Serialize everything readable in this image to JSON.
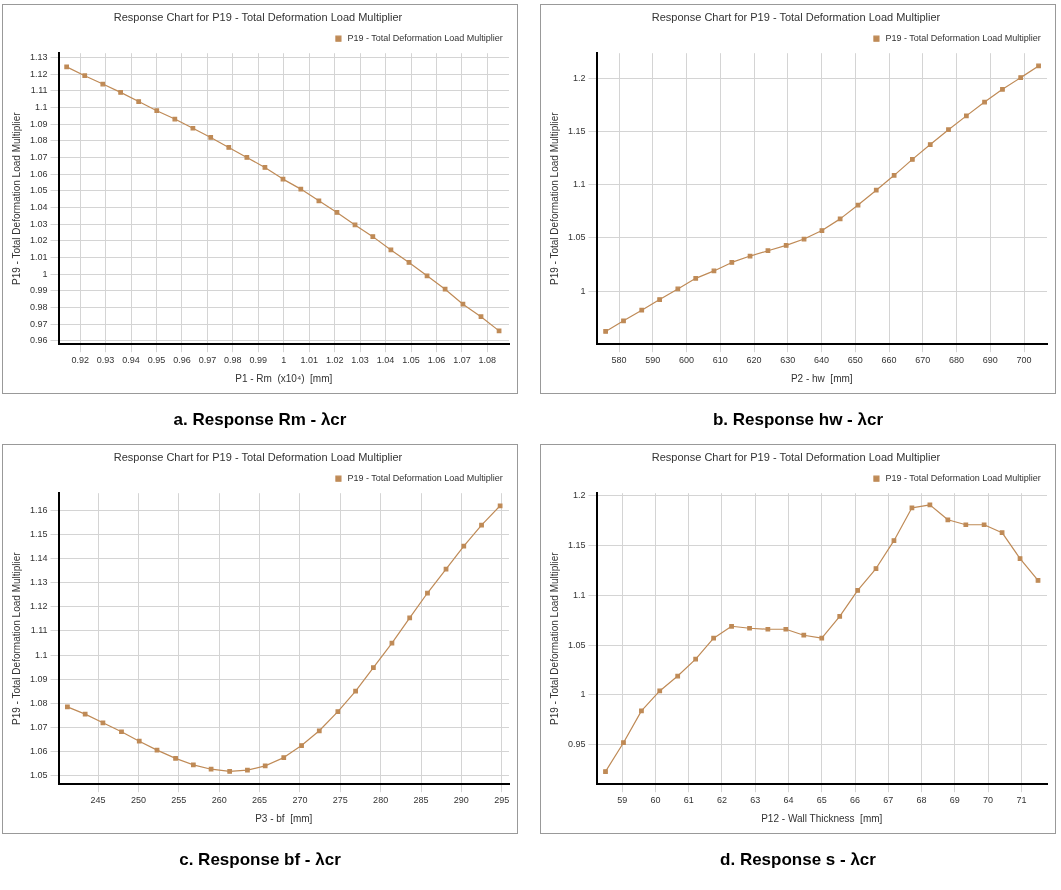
{
  "chart_data": [
    {
      "type": "line",
      "title": "Response Chart for P19 - Total Deformation Load Multiplier",
      "xlabel": "P1 - Rm  (x10⁴)  [mm]",
      "ylabel": "P19 - Total Deformation Load Multiplier",
      "x": [
        0.9147,
        0.9218,
        0.9289,
        0.9359,
        0.943,
        0.9501,
        0.9572,
        0.9643,
        0.9713,
        0.9784,
        0.9855,
        0.9926,
        0.9997,
        1.0067,
        1.0138,
        1.0209,
        1.028,
        1.035,
        1.0421,
        1.0492,
        1.0563,
        1.0634,
        1.0704,
        1.0775,
        1.0846
      ],
      "series": [
        {
          "name": "P19 - Total Deformation Load Multiplier",
          "color": "#bf8a56",
          "values": [
            1.1243,
            1.119,
            1.114,
            1.109,
            1.1035,
            1.098,
            1.093,
            1.0875,
            1.082,
            1.076,
            1.07,
            1.064,
            1.057,
            1.051,
            1.044,
            1.037,
            1.0295,
            1.0225,
            1.0145,
            1.007,
            0.999,
            0.991,
            0.982,
            0.9745,
            0.966
          ]
        }
      ],
      "xlim": [
        0.9115,
        1.0885
      ],
      "ylim": [
        0.958,
        1.1325
      ],
      "xticks": [
        0.92,
        0.93,
        0.94,
        0.95,
        0.96,
        0.97,
        0.98,
        0.99,
        1,
        1.01,
        1.02,
        1.03,
        1.04,
        1.05,
        1.06,
        1.07,
        1.08
      ],
      "yticks": [
        0.96,
        0.97,
        0.98,
        0.99,
        1,
        1.01,
        1.02,
        1.03,
        1.04,
        1.05,
        1.06,
        1.07,
        1.08,
        1.09,
        1.1,
        1.11,
        1.12,
        1.13
      ],
      "grid": true,
      "legend": "top right",
      "marker": "square",
      "annotations": [
        "a. Response Rm  - λcr"
      ]
    },
    {
      "type": "line",
      "title": "Response Chart for P19 - Total Deformation Load Multiplier",
      "xlabel": "P2 - hw  [mm]",
      "ylabel": "P19 - Total Deformation Load Multiplier",
      "x": [
        576.0,
        581.3,
        586.7,
        592.0,
        597.4,
        602.7,
        608.1,
        613.4,
        618.8,
        624.1,
        629.5,
        634.8,
        640.1,
        645.5,
        650.8,
        656.2,
        661.5,
        666.9,
        672.2,
        677.6,
        682.9,
        688.3,
        693.6,
        699.0,
        704.3
      ],
      "series": [
        {
          "name": "P19 - Total Deformation Load Multiplier",
          "color": "#bf8a56",
          "values": [
            0.962,
            0.972,
            0.982,
            0.992,
            1.002,
            1.012,
            1.019,
            1.027,
            1.033,
            1.038,
            1.043,
            1.049,
            1.057,
            1.068,
            1.081,
            1.095,
            1.109,
            1.124,
            1.138,
            1.152,
            1.165,
            1.178,
            1.19,
            1.201,
            1.212
          ]
        }
      ],
      "xlim": [
        573.3,
        706.8
      ],
      "ylim": [
        0.95,
        1.224
      ],
      "xticks": [
        580,
        590,
        600,
        610,
        620,
        630,
        640,
        650,
        660,
        670,
        680,
        690,
        700
      ],
      "yticks": [
        1,
        1.05,
        1.1,
        1.15,
        1.2
      ],
      "grid": true,
      "legend": "top right",
      "marker": "square",
      "annotations": [
        "b. Response hw - λcr"
      ]
    },
    {
      "type": "line",
      "title": "Response Chart for P19 - Total Deformation Load Multiplier",
      "xlabel": "P3 - bf  [mm]",
      "ylabel": "P19 - Total Deformation Load Multiplier",
      "x": [
        241.2,
        243.4,
        245.6,
        247.9,
        250.1,
        252.3,
        254.6,
        256.8,
        259.0,
        261.3,
        263.5,
        265.7,
        268.0,
        270.2,
        272.4,
        274.7,
        276.9,
        279.1,
        281.4,
        283.6,
        285.8,
        288.1,
        290.3,
        292.5,
        294.8
      ],
      "series": [
        {
          "name": "P19 - Total Deformation Load Multiplier",
          "color": "#bf8a56",
          "values": [
            1.0786,
            1.0756,
            1.072,
            1.0683,
            1.0644,
            1.0607,
            1.0573,
            1.0546,
            1.0528,
            1.0519,
            1.0524,
            1.0542,
            1.0576,
            1.0626,
            1.0687,
            1.0766,
            1.0851,
            1.0948,
            1.105,
            1.1154,
            1.1257,
            1.1356,
            1.1451,
            1.1538,
            1.1618
          ]
        }
      ],
      "xlim": [
        240.1,
        295.9
      ],
      "ylim": [
        1.0466,
        1.167
      ],
      "xticks": [
        245,
        250,
        255,
        260,
        265,
        270,
        275,
        280,
        285,
        290,
        295
      ],
      "yticks": [
        1.05,
        1.06,
        1.07,
        1.08,
        1.09,
        1.1,
        1.11,
        1.12,
        1.13,
        1.14,
        1.15,
        1.16
      ],
      "grid": true,
      "legend": "top right",
      "marker": "square",
      "annotations": [
        "c. Response bf - λcr"
      ]
    },
    {
      "type": "line",
      "title": "Response Chart for P19 - Total Deformation Load Multiplier",
      "xlabel": "P12 - Wall Thickness  [mm]",
      "ylabel": "P19 - Total Deformation Load Multiplier",
      "x": [
        58.5,
        59.04,
        59.58,
        60.13,
        60.67,
        61.21,
        61.75,
        62.29,
        62.83,
        63.38,
        63.92,
        64.46,
        65.0,
        65.54,
        66.08,
        66.63,
        67.17,
        67.71,
        68.25,
        68.79,
        69.33,
        69.88,
        70.42,
        70.96,
        71.5
      ],
      "series": [
        {
          "name": "P19 - Total Deformation Load Multiplier",
          "color": "#bf8a56",
          "values": [
            0.923,
            0.952,
            0.984,
            1.004,
            1.019,
            1.036,
            1.057,
            1.069,
            1.067,
            1.066,
            1.066,
            1.06,
            1.057,
            1.079,
            1.105,
            1.127,
            1.155,
            1.188,
            1.191,
            1.176,
            1.171,
            1.171,
            1.163,
            1.137,
            1.115
          ]
        }
      ],
      "xlim": [
        58.23,
        71.77
      ],
      "ylim": [
        0.9103,
        1.2027
      ],
      "xticks": [
        59,
        60,
        61,
        62,
        63,
        64,
        65,
        66,
        67,
        68,
        69,
        70,
        71
      ],
      "yticks": [
        0.95,
        1,
        1.05,
        1.1,
        1.15,
        1.2
      ],
      "grid": true,
      "legend": "top right",
      "marker": "square",
      "annotations": [
        "d. Response s - λcr"
      ]
    }
  ]
}
